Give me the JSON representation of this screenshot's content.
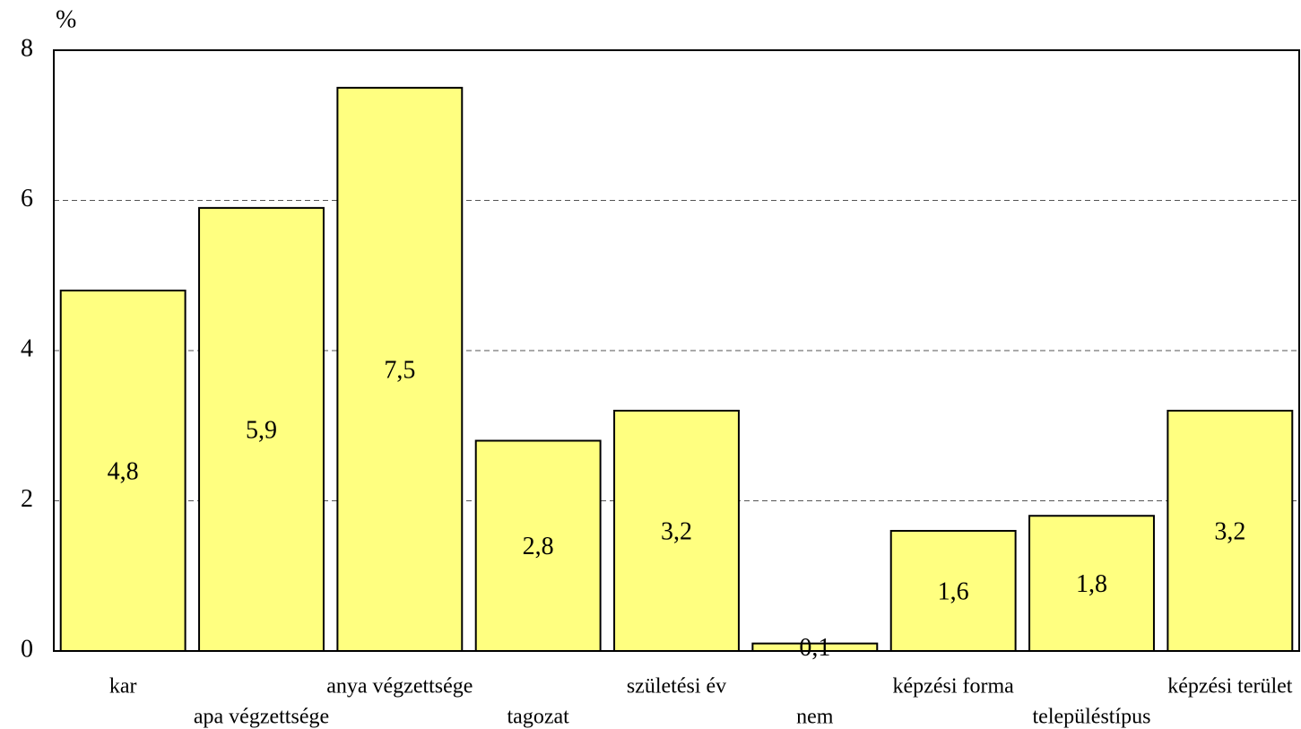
{
  "chart_data": {
    "type": "bar",
    "y_axis_label": "%",
    "categories": [
      "kar",
      "apa végzettsége",
      "anya végzettsége",
      "tagozat",
      "születési év",
      "nem",
      "képzési forma",
      "településtípus",
      "képzési terület"
    ],
    "values": [
      4.8,
      5.9,
      7.5,
      2.8,
      3.2,
      0.1,
      1.6,
      1.8,
      3.2
    ],
    "value_labels": [
      "4,8",
      "5,9",
      "7,5",
      "2,8",
      "3,2",
      "0,1",
      "1,6",
      "1,8",
      "3,2"
    ],
    "color": "#ffff80",
    "ylim": [
      0,
      8
    ],
    "yticks": [
      0,
      2,
      4,
      6,
      8
    ],
    "grid": true
  }
}
